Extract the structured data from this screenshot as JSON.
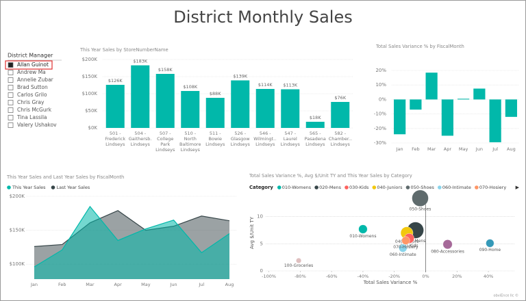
{
  "page_title": "District Monthly Sales",
  "footer": "obviEnce llc ©",
  "slicer": {
    "title": "District Manager",
    "selected": 0,
    "items": [
      "Allan Guinot",
      "Andrew Ma",
      "Annelie Zubar",
      "Brad Sutton",
      "Carlos Grilo",
      "Chris Gray",
      "Chris McGurk",
      "Tina Lassila",
      "Valery Ushakov"
    ]
  },
  "chart_data": [
    {
      "type": "bar",
      "title": "This Year Sales by StoreNumberName",
      "categories": [
        "501 - Frederick Lindseys",
        "504 - Gaithersb... Lindseys",
        "507 - College Park Lindseys",
        "510 - North Baltimore Lindseys",
        "511 - Bowie Lindseys",
        "526 - Glasgow Lindseys",
        "546 - Wilmingt... Lindseys",
        "547 - Laurel Lindseys",
        "565 - Pasadena Lindseys",
        "582 - Chamber... Lindseys"
      ],
      "values": [
        126000,
        183000,
        158000,
        108000,
        88000,
        139000,
        114000,
        113000,
        18000,
        76000
      ],
      "value_labels": [
        "$126K",
        "$183K",
        "$158K",
        "$108K",
        "$88K",
        "$139K",
        "$114K",
        "$113K",
        "$18K",
        "$76K"
      ],
      "color": "#01b8aa",
      "ylim": [
        0,
        200000
      ],
      "yticks": [
        {
          "value": 0,
          "label": "$0K"
        },
        {
          "value": 50000,
          "label": "$50K"
        },
        {
          "value": 100000,
          "label": "$100K"
        },
        {
          "value": 150000,
          "label": "$150K"
        },
        {
          "value": 200000,
          "label": "$200K"
        }
      ],
      "grid": true
    },
    {
      "type": "bar",
      "title": "Total Sales Variance % by FiscalMonth",
      "categories": [
        "Jan",
        "Feb",
        "Mar",
        "Apr",
        "May",
        "Jun",
        "Jul",
        "Aug"
      ],
      "values": [
        -24,
        -7,
        18.5,
        -25,
        0.5,
        7.5,
        -29.5,
        -12
      ],
      "color": "#01b8aa",
      "ylim": [
        -30,
        20
      ],
      "yticks": [
        {
          "value": -30,
          "label": "-30%"
        },
        {
          "value": -20,
          "label": "-20%"
        },
        {
          "value": -10,
          "label": "-10%"
        },
        {
          "value": 0,
          "label": "0%"
        },
        {
          "value": 10,
          "label": "10%"
        },
        {
          "value": 20,
          "label": "20%"
        }
      ],
      "grid": true
    },
    {
      "type": "area",
      "title": "This Year Sales and Last Year Sales by FiscalMonth",
      "categories": [
        "Jan",
        "Feb",
        "Mar",
        "Apr",
        "May",
        "Jun",
        "Jul",
        "Aug"
      ],
      "series": [
        {
          "name": "This Year Sales",
          "color": "#01b8aa",
          "values": [
            96000,
            121000,
            185000,
            135000,
            152000,
            165000,
            117000,
            145000
          ]
        },
        {
          "name": "Last Year Sales",
          "color": "#374649",
          "values": [
            126000,
            129000,
            161000,
            179000,
            150000,
            156000,
            171000,
            164000
          ]
        }
      ],
      "ylim": [
        78000,
        200000
      ],
      "yticks": [
        {
          "value": 100000,
          "label": "$100K"
        },
        {
          "value": 150000,
          "label": "$150K"
        },
        {
          "value": 200000,
          "label": "$200K"
        }
      ],
      "legend": "top-left",
      "grid": true
    },
    {
      "type": "scatter",
      "title": "Total Sales Variance %, Avg $/Unit TY and This Year Sales by Category",
      "legend_title": "Category",
      "x_label": "Total Sales Variance %",
      "y_label": "Avg $/Unit TY",
      "series": [
        {
          "name": "010-Womens",
          "color": "#01b8aa",
          "x": [
            -40
          ],
          "values": [
            7.7
          ],
          "sizes": [
            70
          ]
        },
        {
          "name": "020-Mens",
          "color": "#374649",
          "x": [
            -6.5
          ],
          "values": [
            7.5
          ],
          "sizes": [
            250
          ]
        },
        {
          "name": "030-Kids",
          "color": "#fd625e",
          "x": [
            -10.5
          ],
          "values": [
            6
          ],
          "sizes": [
            90
          ]
        },
        {
          "name": "040-Juniors",
          "color": "#f2c80f",
          "x": [
            -12
          ],
          "values": [
            7
          ],
          "sizes": [
            140
          ]
        },
        {
          "name": "050-Shoes",
          "color": "#5f6b6d",
          "x": [
            -3.5
          ],
          "values": [
            13.4
          ],
          "sizes": [
            250
          ]
        },
        {
          "name": "060-Intimate",
          "color": "#8ad4eb",
          "x": [
            -14.5
          ],
          "values": [
            4.2
          ],
          "sizes": [
            60
          ]
        },
        {
          "name": "070-Hosiery",
          "color": "#fe9666",
          "x": [
            -12.7
          ],
          "values": [
            5.6
          ],
          "sizes": [
            60
          ]
        },
        {
          "name": "080-Accessories",
          "color": "#a66999",
          "x": [
            14
          ],
          "values": [
            4.9
          ],
          "sizes": [
            80
          ]
        },
        {
          "name": "090-Home",
          "color": "#3599b8",
          "x": [
            41
          ],
          "values": [
            5.1
          ],
          "sizes": [
            60
          ]
        },
        {
          "name": "100-Groceries",
          "color": "#dfbfbf",
          "x": [
            -81
          ],
          "values": [
            1.9
          ],
          "sizes": [
            25
          ]
        }
      ],
      "xlim": [
        -102,
        57
      ],
      "xticks": [
        {
          "value": -100,
          "label": "-100%"
        },
        {
          "value": -80,
          "label": "-80%"
        },
        {
          "value": -60,
          "label": "-60%"
        },
        {
          "value": -40,
          "label": "-40%"
        },
        {
          "value": -20,
          "label": "-20%"
        },
        {
          "value": 0,
          "label": "0%"
        },
        {
          "value": 20,
          "label": "20%"
        },
        {
          "value": 40,
          "label": "40%"
        }
      ],
      "ylim": [
        0,
        14
      ],
      "yticks": [
        0,
        5,
        10
      ],
      "grid": true
    }
  ]
}
